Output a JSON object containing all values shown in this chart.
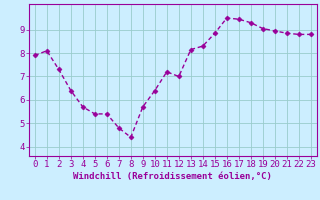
{
  "x": [
    0,
    1,
    2,
    3,
    4,
    5,
    6,
    7,
    8,
    9,
    10,
    11,
    12,
    13,
    14,
    15,
    16,
    17,
    18,
    19,
    20,
    21,
    22,
    23
  ],
  "y": [
    7.9,
    8.1,
    7.3,
    6.4,
    5.7,
    5.4,
    5.4,
    4.8,
    4.4,
    5.7,
    6.4,
    7.2,
    7.0,
    8.15,
    8.3,
    8.85,
    9.5,
    9.45,
    9.3,
    9.05,
    8.95,
    8.85,
    8.8,
    8.8
  ],
  "line_color": "#990099",
  "marker": "D",
  "markersize": 2.5,
  "linewidth": 1.0,
  "bg_color": "#cceeff",
  "grid_color": "#99cccc",
  "xlabel": "Windchill (Refroidissement éolien,°C)",
  "ylabel": "",
  "ylim": [
    3.6,
    10.1
  ],
  "xlim": [
    -0.5,
    23.5
  ],
  "yticks": [
    4,
    5,
    6,
    7,
    8,
    9
  ],
  "xticks": [
    0,
    1,
    2,
    3,
    4,
    5,
    6,
    7,
    8,
    9,
    10,
    11,
    12,
    13,
    14,
    15,
    16,
    17,
    18,
    19,
    20,
    21,
    22,
    23
  ],
  "xlabel_fontsize": 6.5,
  "tick_fontsize": 6.5,
  "tick_color": "#990099",
  "axis_color": "#990099"
}
